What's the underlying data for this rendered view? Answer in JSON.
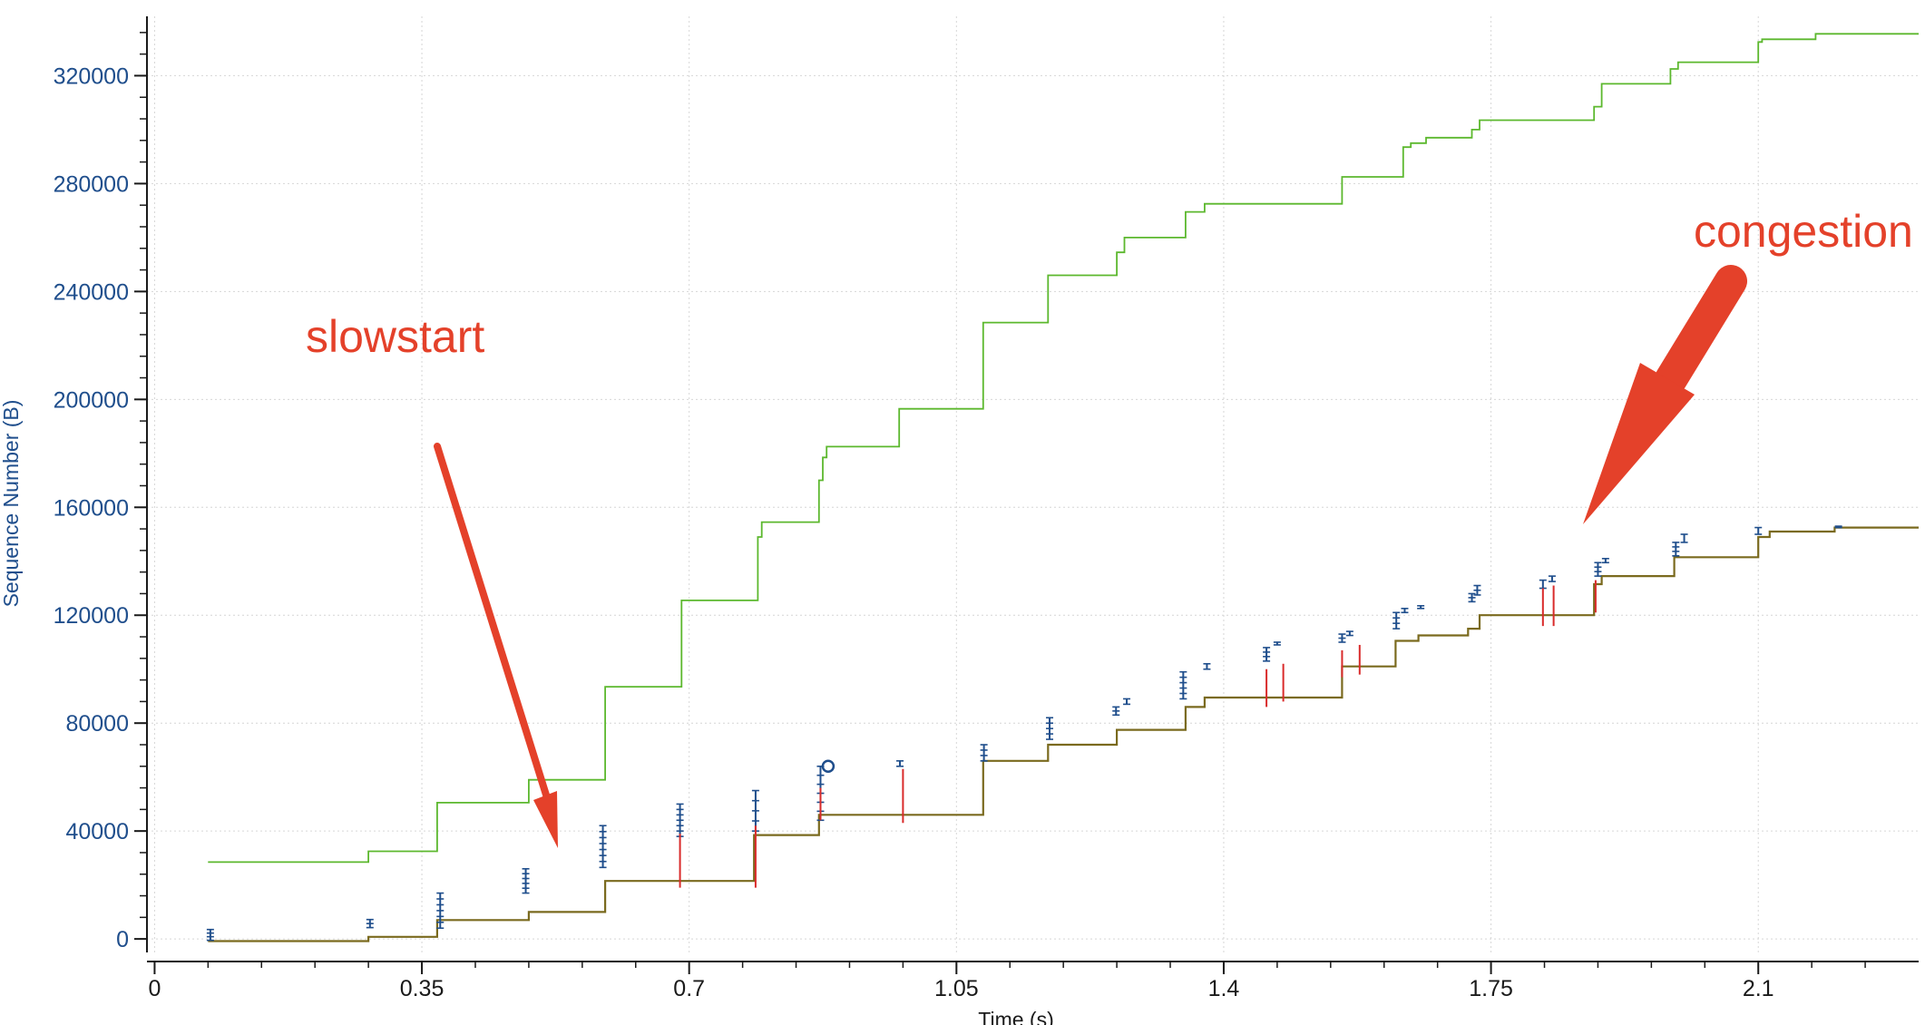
{
  "chart_data": {
    "type": "line",
    "title": "",
    "xlabel": "Time (s)",
    "ylabel": "Sequence Number (B)",
    "xlim": [
      -0.01,
      2.31
    ],
    "ylim": [
      -5000,
      342000
    ],
    "xticks": [
      0,
      0.35,
      0.7,
      1.05,
      1.4,
      1.75,
      2.1
    ],
    "xtick_labels": [
      "0",
      "0.35",
      "0.7",
      "1.05",
      "1.4",
      "1.75",
      "2.1"
    ],
    "yticks": [
      0,
      40000,
      80000,
      120000,
      160000,
      200000,
      240000,
      280000,
      320000
    ],
    "ytick_labels": [
      "0",
      "40000",
      "80000",
      "120000",
      "160000",
      "200000",
      "240000",
      "280000",
      "320000"
    ],
    "grid": true,
    "series": [
      {
        "kind": "window-step",
        "color": "#5cb82e",
        "points": [
          [
            0.07,
            28500
          ],
          [
            0.28,
            28500
          ],
          [
            0.28,
            32500
          ],
          [
            0.37,
            32500
          ],
          [
            0.37,
            50500
          ],
          [
            0.49,
            50500
          ],
          [
            0.49,
            59000
          ],
          [
            0.59,
            59000
          ],
          [
            0.59,
            93500
          ],
          [
            0.69,
            93500
          ],
          [
            0.69,
            125500
          ],
          [
            0.79,
            125500
          ],
          [
            0.79,
            149000
          ],
          [
            0.795,
            149000
          ],
          [
            0.795,
            154500
          ],
          [
            0.87,
            154500
          ],
          [
            0.87,
            170000
          ],
          [
            0.875,
            170000
          ],
          [
            0.875,
            178500
          ],
          [
            0.88,
            178500
          ],
          [
            0.88,
            182500
          ],
          [
            0.975,
            182500
          ],
          [
            0.975,
            196500
          ],
          [
            1.085,
            196500
          ],
          [
            1.085,
            228500
          ],
          [
            1.17,
            228500
          ],
          [
            1.17,
            246000
          ],
          [
            1.26,
            246000
          ],
          [
            1.26,
            254500
          ],
          [
            1.27,
            254500
          ],
          [
            1.27,
            260000
          ],
          [
            1.35,
            260000
          ],
          [
            1.35,
            269500
          ],
          [
            1.375,
            269500
          ],
          [
            1.375,
            272500
          ],
          [
            1.555,
            272500
          ],
          [
            1.555,
            282500
          ],
          [
            1.635,
            282500
          ],
          [
            1.635,
            293500
          ],
          [
            1.645,
            293500
          ],
          [
            1.645,
            295000
          ],
          [
            1.665,
            295000
          ],
          [
            1.665,
            297000
          ],
          [
            1.725,
            297000
          ],
          [
            1.725,
            300000
          ],
          [
            1.735,
            300000
          ],
          [
            1.735,
            303500
          ],
          [
            1.885,
            303500
          ],
          [
            1.885,
            308500
          ],
          [
            1.895,
            308500
          ],
          [
            1.895,
            317000
          ],
          [
            1.985,
            317000
          ],
          [
            1.985,
            322500
          ],
          [
            1.995,
            322500
          ],
          [
            1.995,
            325000
          ],
          [
            2.1,
            325000
          ],
          [
            2.1,
            332500
          ],
          [
            2.105,
            332500
          ],
          [
            2.105,
            333500
          ],
          [
            2.175,
            333500
          ],
          [
            2.175,
            335500
          ],
          [
            2.31,
            335500
          ]
        ]
      },
      {
        "kind": "ack-step",
        "color": "#7a6a1e",
        "points": [
          [
            0.07,
            -800
          ],
          [
            0.28,
            -800
          ],
          [
            0.28,
            800
          ],
          [
            0.37,
            800
          ],
          [
            0.37,
            7000
          ],
          [
            0.49,
            7000
          ],
          [
            0.49,
            10000
          ],
          [
            0.59,
            10000
          ],
          [
            0.59,
            21500
          ],
          [
            0.785,
            21500
          ],
          [
            0.785,
            38500
          ],
          [
            0.87,
            38500
          ],
          [
            0.87,
            46000
          ],
          [
            1.085,
            46000
          ],
          [
            1.085,
            66000
          ],
          [
            1.17,
            66000
          ],
          [
            1.17,
            72000
          ],
          [
            1.26,
            72000
          ],
          [
            1.26,
            77500
          ],
          [
            1.35,
            77500
          ],
          [
            1.35,
            86000
          ],
          [
            1.375,
            86000
          ],
          [
            1.375,
            89500
          ],
          [
            1.555,
            89500
          ],
          [
            1.555,
            101000
          ],
          [
            1.625,
            101000
          ],
          [
            1.625,
            110500
          ],
          [
            1.655,
            110500
          ],
          [
            1.655,
            112500
          ],
          [
            1.72,
            112500
          ],
          [
            1.72,
            115000
          ],
          [
            1.735,
            115000
          ],
          [
            1.735,
            120000
          ],
          [
            1.885,
            120000
          ],
          [
            1.885,
            131500
          ],
          [
            1.895,
            131500
          ],
          [
            1.895,
            134500
          ],
          [
            1.99,
            134500
          ],
          [
            1.99,
            141500
          ],
          [
            2.1,
            141500
          ],
          [
            2.1,
            149000
          ],
          [
            2.115,
            149000
          ],
          [
            2.115,
            151000
          ],
          [
            2.2,
            151000
          ],
          [
            2.2,
            152500
          ],
          [
            2.31,
            152500
          ]
        ]
      },
      {
        "kind": "segment-bursts",
        "color": "#1f4e8c",
        "bursts": [
          [
            0.073,
            -500,
            3500,
            3
          ],
          [
            0.282,
            4200,
            7200,
            2
          ],
          [
            0.374,
            4000,
            17000,
            6
          ],
          [
            0.486,
            17000,
            26000,
            5
          ],
          [
            0.587,
            26500,
            42000,
            7
          ],
          [
            0.688,
            38000,
            50000,
            6
          ],
          [
            0.787,
            40000,
            55000,
            4
          ],
          [
            0.872,
            44000,
            64000,
            6
          ],
          [
            0.976,
            64000,
            66000,
            1
          ],
          [
            1.086,
            66000,
            72000,
            3
          ],
          [
            1.172,
            74000,
            82000,
            4
          ],
          [
            1.259,
            83000,
            86000,
            2
          ],
          [
            1.273,
            87000,
            89000,
            1
          ],
          [
            1.347,
            89000,
            99000,
            5
          ],
          [
            1.378,
            100000,
            102000,
            1
          ],
          [
            1.456,
            103000,
            108000,
            3
          ],
          [
            1.47,
            109000,
            110000,
            1
          ],
          [
            1.555,
            110000,
            113000,
            2
          ],
          [
            1.565,
            112500,
            114000,
            1
          ],
          [
            1.626,
            115000,
            121000,
            3
          ],
          [
            1.637,
            121000,
            122500,
            1
          ],
          [
            1.658,
            122500,
            123500,
            1
          ],
          [
            1.725,
            125000,
            128000,
            2
          ],
          [
            1.732,
            127500,
            131000,
            2
          ],
          [
            1.818,
            130000,
            133000,
            1
          ],
          [
            1.83,
            132500,
            134500,
            1
          ],
          [
            1.89,
            134500,
            139500,
            3
          ],
          [
            1.9,
            139500,
            141000,
            1
          ],
          [
            1.992,
            142000,
            147000,
            3
          ],
          [
            2.003,
            147000,
            150000,
            1
          ],
          [
            2.1,
            150000,
            152500,
            1
          ],
          [
            2.205,
            152500,
            153000,
            1
          ]
        ]
      },
      {
        "kind": "retransmissions",
        "color": "#d92b2b",
        "marks": [
          [
            0.688,
            19000,
            39000
          ],
          [
            0.787,
            19000,
            42000
          ],
          [
            0.872,
            44000,
            56000
          ],
          [
            0.98,
            43000,
            63000
          ],
          [
            1.456,
            86000,
            100000
          ],
          [
            1.478,
            88000,
            102000
          ],
          [
            1.555,
            97000,
            107000
          ],
          [
            1.578,
            98000,
            109000
          ],
          [
            1.818,
            116000,
            130000
          ],
          [
            1.832,
            116000,
            131000
          ],
          [
            1.887,
            121000,
            133000
          ]
        ]
      }
    ],
    "annotations": [
      {
        "text": "slowstart",
        "color": "#e4412a"
      },
      {
        "text": "congestion",
        "color": "#e4412a"
      }
    ]
  },
  "colors": {
    "axis": "#1a1a1a",
    "ylabel": "#1f4e8c",
    "grid": "#d6d6d6",
    "annotation": "#e4412a"
  }
}
